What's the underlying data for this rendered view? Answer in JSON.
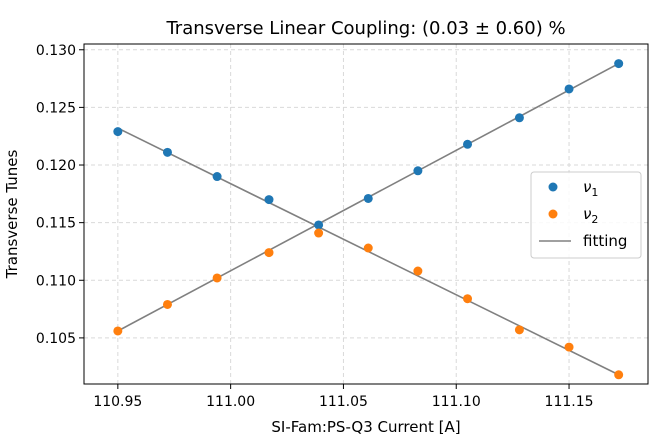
{
  "chart_data": {
    "type": "scatter",
    "title": "Transverse Linear Coupling: (0.03 ± 0.60) %",
    "xlabel": "SI-Fam:PS-Q3 Current [A]",
    "ylabel": "Transverse Tunes",
    "xlim": [
      110.935,
      111.185
    ],
    "ylim": [
      0.101,
      0.1305
    ],
    "xticks": [
      110.95,
      111.0,
      111.05,
      111.1,
      111.15
    ],
    "xtick_labels": [
      "110.95",
      "111.00",
      "111.05",
      "111.10",
      "111.15"
    ],
    "yticks": [
      0.105,
      0.11,
      0.115,
      0.12,
      0.125,
      0.13
    ],
    "ytick_labels": [
      "0.105",
      "0.110",
      "0.115",
      "0.120",
      "0.125",
      "0.130"
    ],
    "grid": true,
    "legend_position": "center-right",
    "x": [
      110.95,
      110.972,
      110.994,
      111.017,
      111.039,
      111.061,
      111.083,
      111.105,
      111.128,
      111.15,
      111.172
    ],
    "series": [
      {
        "name": "ν",
        "subscript": "1",
        "color": "#1f77b4",
        "values": [
          0.1229,
          0.1211,
          0.119,
          0.117,
          0.1148,
          0.1171,
          0.1195,
          0.1218,
          0.1241,
          0.1266,
          0.1288
        ]
      },
      {
        "name": "ν",
        "subscript": "2",
        "color": "#ff7f0e",
        "values": [
          0.1056,
          0.1079,
          0.1102,
          0.1124,
          0.1141,
          0.1128,
          0.1108,
          0.1084,
          0.1057,
          0.1042,
          0.1018
        ]
      }
    ],
    "fit_lines": {
      "name": "fitting",
      "color": "#808080",
      "lines": [
        {
          "x": [
            110.95,
            111.172
          ],
          "y": [
            0.1232,
            0.1018
          ]
        },
        {
          "x": [
            110.95,
            111.172
          ],
          "y": [
            0.1056,
            0.1288
          ]
        }
      ]
    }
  }
}
